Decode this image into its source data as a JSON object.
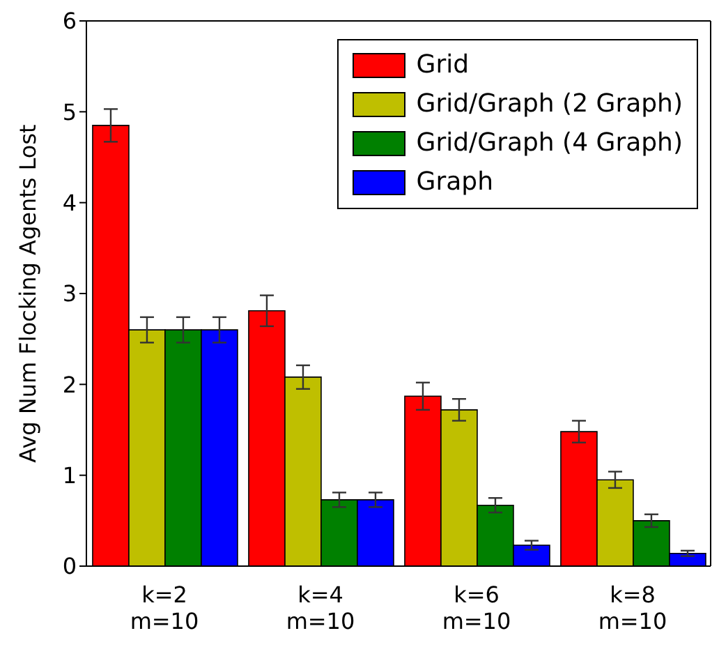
{
  "chart_data": {
    "type": "bar",
    "ylabel": "Avg Num Flocking Agents Lost",
    "categories": [
      "k=2\nm=10",
      "k=4\nm=10",
      "k=6\nm=10",
      "k=8\nm=10"
    ],
    "series": [
      {
        "name": "Grid",
        "color": "#ff0000",
        "values": [
          4.85,
          2.81,
          1.87,
          1.48
        ],
        "errors": [
          0.18,
          0.17,
          0.15,
          0.12
        ]
      },
      {
        "name": "Grid/Graph (2 Graph)",
        "color": "#bfbf00",
        "values": [
          2.6,
          2.08,
          1.72,
          0.95
        ],
        "errors": [
          0.14,
          0.13,
          0.12,
          0.09
        ]
      },
      {
        "name": "Grid/Graph (4 Graph)",
        "color": "#008000",
        "values": [
          2.6,
          0.73,
          0.67,
          0.5
        ],
        "errors": [
          0.14,
          0.08,
          0.08,
          0.07
        ]
      },
      {
        "name": "Graph",
        "color": "#0000ff",
        "values": [
          2.6,
          0.73,
          0.23,
          0.14
        ],
        "errors": [
          0.14,
          0.08,
          0.05,
          0.03
        ]
      }
    ],
    "ylim": [
      0,
      6
    ],
    "yticks": [
      0,
      1,
      2,
      3,
      4,
      5,
      6
    ],
    "grid": false,
    "legend": "top right"
  }
}
